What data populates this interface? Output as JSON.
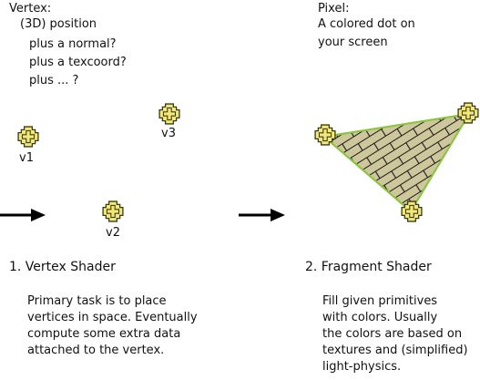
{
  "vertex": {
    "title": "Vertex:",
    "lines": [
      "(3D) position",
      "plus a normal?",
      "plus a texcoord?",
      "plus ... ?"
    ]
  },
  "pixel": {
    "title": "Pixel:",
    "lines": [
      "A colored dot on",
      "your screen"
    ]
  },
  "labels": {
    "v1": "v1",
    "v2": "v2",
    "v3": "v3"
  },
  "stages": [
    {
      "title": "1. Vertex Shader",
      "desc": [
        "Primary task is to place",
        "vertices in space. Eventually",
        "compute some extra data",
        "attached to the vertex."
      ]
    },
    {
      "title": "2.  Fragment Shader",
      "desc": [
        "Fill given primitives",
        "with colors. Usually",
        "the colors are based on",
        "textures and (simplified)",
        "light-physics."
      ]
    }
  ],
  "colors": {
    "marker_fill": "#f3e97a",
    "marker_stroke": "#3c3c14",
    "triangle_fill": "#cfc79c",
    "triangle_edge": "#8cc63f",
    "arrow": "#000000"
  },
  "icons": {
    "vertex_marker": "vertex-marker-icon",
    "arrow": "arrow-right-icon"
  }
}
